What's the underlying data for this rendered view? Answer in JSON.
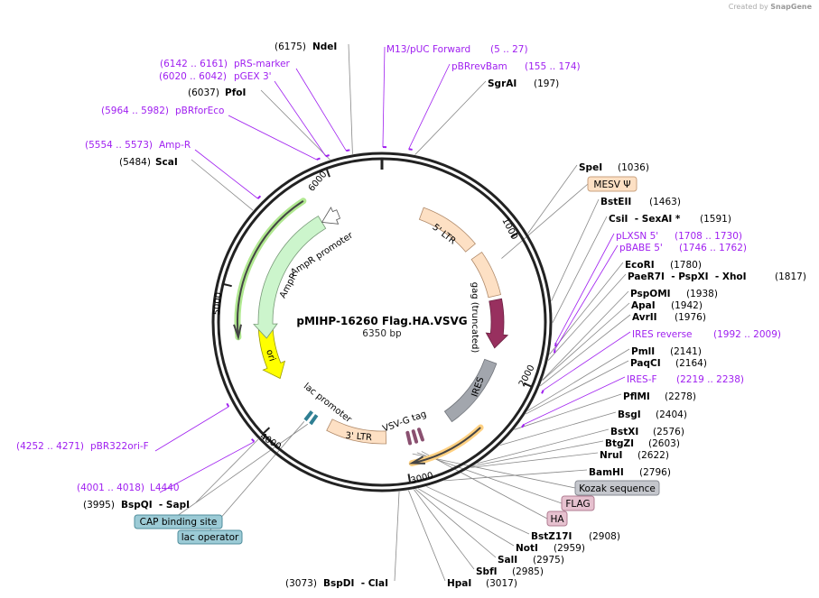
{
  "credit": {
    "prefix": "Created by",
    "brand": "SnapGene"
  },
  "plasmid": {
    "name": "pMIHP-16260 Flag.HA.VSVG",
    "length": "6350 bp",
    "total_bp": 6350
  },
  "ticks": [
    "1000",
    "2000",
    "3000",
    "4000",
    "5000",
    "6000"
  ],
  "features": {
    "ltr5": "5' LTR",
    "gag": "gag (truncated)",
    "ires": "IRES",
    "vsvg": "VSV-G tag",
    "ltr3": "3' LTR",
    "lac_promoter": "lac promoter",
    "ori": "ori",
    "ampr": "AmpR",
    "ampr_promoter": "AmpR promoter"
  },
  "enzymes": [
    {
      "name": "SpeI",
      "pos": "(1036)"
    },
    {
      "name": "BstEII",
      "pos": "(1463)"
    },
    {
      "name": "CsiI  - SexAI *",
      "pos": "(1591)"
    },
    {
      "name": "EcoRI",
      "pos": "(1780)"
    },
    {
      "name": "PaeR7I  - PspXI  - XhoI",
      "pos": "(1817)"
    },
    {
      "name": "PspOMI",
      "pos": "(1938)"
    },
    {
      "name": "ApaI",
      "pos": "(1942)"
    },
    {
      "name": "AvrII",
      "pos": "(1976)"
    },
    {
      "name": "PmlI",
      "pos": "(2141)"
    },
    {
      "name": "PaqCI",
      "pos": "(2164)"
    },
    {
      "name": "PflMI",
      "pos": "(2278)"
    },
    {
      "name": "BsgI",
      "pos": "(2404)"
    },
    {
      "name": "BstXI",
      "pos": "(2576)"
    },
    {
      "name": "BtgZI",
      "pos": "(2603)"
    },
    {
      "name": "NruI",
      "pos": "(2622)"
    },
    {
      "name": "BamHI",
      "pos": "(2796)"
    },
    {
      "name": "BstZ17I",
      "pos": "(2908)"
    },
    {
      "name": "NotI",
      "pos": "(2959)"
    },
    {
      "name": "SalI",
      "pos": "(2975)"
    },
    {
      "name": "SbfI",
      "pos": "(2985)"
    },
    {
      "name": "HpaI",
      "pos": "(3017)"
    },
    {
      "name": "BspDI  - ClaI",
      "pos": "(3073)"
    },
    {
      "name": "BspQI  - SapI",
      "pos": "(3995)"
    },
    {
      "name": "ScaI",
      "pos": "(5484)"
    },
    {
      "name": "PfoI",
      "pos": "(6037)"
    },
    {
      "name": "NdeI",
      "pos": "(6175)"
    },
    {
      "name": "SgrAI",
      "pos": "(197)"
    }
  ],
  "primers": [
    {
      "name": "M13/pUC Forward",
      "range": "(5 .. 27)"
    },
    {
      "name": "pBRrevBam",
      "range": "(155 .. 174)"
    },
    {
      "name": "pLXSN 5'",
      "range": "(1708 .. 1730)"
    },
    {
      "name": "pBABE 5'",
      "range": "(1746 .. 1762)"
    },
    {
      "name": "IRES reverse",
      "range": "(1992 .. 2009)"
    },
    {
      "name": "IRES-F",
      "range": "(2219 .. 2238)"
    },
    {
      "name": "L4440",
      "range": "(4001 .. 4018)"
    },
    {
      "name": "pBR322ori-F",
      "range": "(4252 .. 4271)"
    },
    {
      "name": "Amp-R",
      "range": "(5554 .. 5573)"
    },
    {
      "name": "pBRforEco",
      "range": "(5964 .. 5982)"
    },
    {
      "name": "pGEX 3'",
      "range": "(6020 .. 6042)"
    },
    {
      "name": "pRS-marker",
      "range": "(6142 .. 6161)"
    }
  ],
  "boxes": [
    {
      "label": "MESV Ψ",
      "color": "#fde0c4",
      "border": "#c9a27f"
    },
    {
      "label": "Kozak sequence",
      "color": "#c4c6cc",
      "border": "#888c94"
    },
    {
      "label": "FLAG",
      "color": "#e6c1cf",
      "border": "#b07c92"
    },
    {
      "label": "HA",
      "color": "#e6c1cf",
      "border": "#b07c92"
    },
    {
      "label": "CAP binding site",
      "color": "#9ccbd6",
      "border": "#4f8e9c"
    },
    {
      "label": "lac operator",
      "color": "#9ccbd6",
      "border": "#4f8e9c"
    }
  ],
  "colors": {
    "primer": "#a020f0",
    "backbone": "#222222",
    "leader": "#888888"
  }
}
